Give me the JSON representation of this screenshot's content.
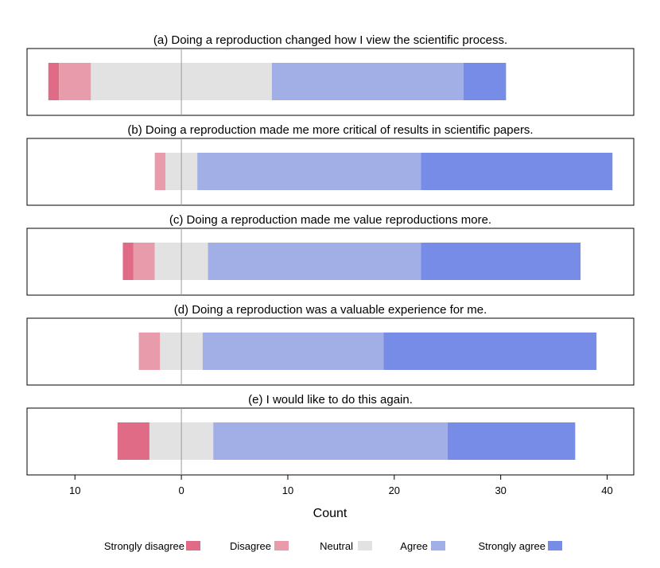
{
  "chart_data": {
    "type": "bar",
    "orientation": "horizontal",
    "stacked": "diverging",
    "xlabel": "Count",
    "x_tick_labels": [
      "10",
      "0",
      "10",
      "20",
      "30",
      "40"
    ],
    "x_ticks": [
      -10,
      0,
      10,
      20,
      30,
      40
    ],
    "xlim": [
      -14.5,
      42.5
    ],
    "grid": false,
    "legend_position": "bottom",
    "categories_order": [
      "Strongly disagree",
      "Disagree",
      "Neutral",
      "Agree",
      "Strongly agree"
    ],
    "colors": {
      "Strongly disagree": "#e06b87",
      "Disagree": "#e89baa",
      "Neutral": "#e2e2e2",
      "Agree": "#a2aee6",
      "Strongly agree": "#768ce7"
    },
    "panels": [
      {
        "title": "(a) Doing a reproduction changed how I view the scientific process.",
        "counts": {
          "Strongly disagree": 1,
          "Disagree": 3,
          "Neutral": 17,
          "Agree": 18,
          "Strongly agree": 4
        }
      },
      {
        "title": "(b) Doing a reproduction made me more critical of results in scientific papers.",
        "counts": {
          "Strongly disagree": 0,
          "Disagree": 1,
          "Neutral": 3,
          "Agree": 21,
          "Strongly agree": 18
        }
      },
      {
        "title": "(c) Doing a reproduction made me value reproductions more.",
        "counts": {
          "Strongly disagree": 1,
          "Disagree": 2,
          "Neutral": 5,
          "Agree": 20,
          "Strongly agree": 15
        }
      },
      {
        "title": "(d) Doing a reproduction was a valuable experience for me.",
        "counts": {
          "Strongly disagree": 0,
          "Disagree": 2,
          "Neutral": 4,
          "Agree": 17,
          "Strongly agree": 20
        }
      },
      {
        "title": "(e) I would like to do this again.",
        "counts": {
          "Strongly disagree": 3,
          "Disagree": 0,
          "Neutral": 6,
          "Agree": 22,
          "Strongly agree": 12
        }
      }
    ]
  }
}
